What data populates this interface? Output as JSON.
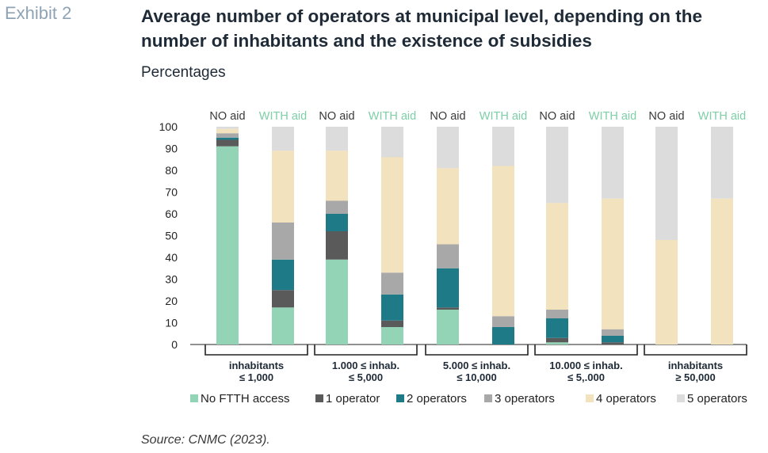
{
  "header": {
    "exhibit": "Exhibit 2",
    "title": "Average number of operators at municipal level, depending on the number of inhabitants and the existence of subsidies",
    "subtitle": "Percentages"
  },
  "footer": {
    "source": "Source: CNMC (2023)."
  },
  "chart_data": {
    "type": "bar",
    "stacked": true,
    "ylim": [
      0,
      100
    ],
    "yticks": [
      0,
      10,
      20,
      30,
      40,
      50,
      60,
      70,
      80,
      90,
      100
    ],
    "grid": false,
    "legend_position": "bottom",
    "groups": [
      {
        "label_lines": [
          "inhabitants",
          "≤ 1,000"
        ]
      },
      {
        "label_lines": [
          "1.000 ≤ inhab.",
          "≤ 5,000"
        ]
      },
      {
        "label_lines": [
          "5.000 ≤ inhab.",
          "≤ 10,000"
        ]
      },
      {
        "label_lines": [
          "10.000 ≤ inhab.",
          "≤ 5,.000"
        ]
      },
      {
        "label_lines": [
          "inhabitants",
          "≥  50,000"
        ]
      }
    ],
    "bars": [
      {
        "group": 0,
        "label": "NO aid",
        "values": [
          91,
          3,
          1,
          2,
          2,
          1
        ]
      },
      {
        "group": 0,
        "label": "WITH aid",
        "values": [
          17,
          8,
          14,
          17,
          33,
          11
        ]
      },
      {
        "group": 1,
        "label": "NO aid",
        "values": [
          39,
          13,
          8,
          6,
          23,
          11
        ]
      },
      {
        "group": 1,
        "label": "WITH aid",
        "values": [
          8,
          3,
          12,
          10,
          53,
          14
        ]
      },
      {
        "group": 2,
        "label": "NO aid",
        "values": [
          16,
          1,
          18,
          11,
          35,
          19
        ]
      },
      {
        "group": 2,
        "label": "WITH aid",
        "values": [
          0,
          0,
          8,
          5,
          69,
          18
        ]
      },
      {
        "group": 3,
        "label": "NO aid",
        "values": [
          1,
          2,
          9,
          4,
          49,
          35
        ]
      },
      {
        "group": 3,
        "label": "WITH aid",
        "values": [
          0,
          1,
          3,
          3,
          60,
          33
        ]
      },
      {
        "group": 4,
        "label": "NO aid",
        "values": [
          0,
          0,
          0,
          0,
          48,
          52
        ]
      },
      {
        "group": 4,
        "label": "WITH aid",
        "values": [
          0,
          0,
          0,
          0,
          67,
          33
        ]
      }
    ],
    "series": [
      {
        "name": "No FTTH access",
        "color": "#93d3b6"
      },
      {
        "name": "1 operator",
        "color": "#5a5a5a"
      },
      {
        "name": "2 operators",
        "color": "#1e7a86"
      },
      {
        "name": "3  operators",
        "color": "#a8a8a8"
      },
      {
        "name": "4 operators",
        "color": "#f2e2bd"
      },
      {
        "name": "5 operators",
        "color": "#dcdcdc"
      }
    ],
    "label_colors": {
      "NO aid": "#3a3a3a",
      "WITH aid": "#7ccfa6"
    }
  }
}
